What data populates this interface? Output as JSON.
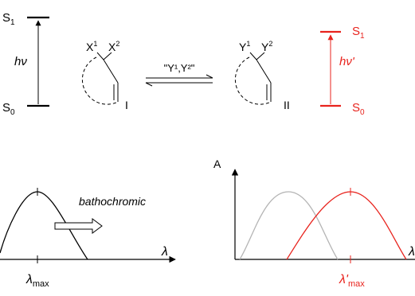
{
  "colors": {
    "ink": "#000000",
    "accent": "#e8231d",
    "gray": "#b4b4b4"
  },
  "left_levels": {
    "s1": "S",
    "s1_sub": "1",
    "s0": "S",
    "s0_sub": "0",
    "arrow_label": "hν"
  },
  "right_levels": {
    "s1": "S",
    "s1_sub": "1",
    "s0": "S",
    "s0_sub": "0",
    "arrow_label": "hν'"
  },
  "molecule_1": {
    "x1": "X",
    "x1_sup": "1",
    "x2": "X",
    "x2_sup": "2",
    "label": "I"
  },
  "molecule_2": {
    "y1": "Y",
    "y1_sup": "1",
    "y2": "Y",
    "y2_sup": "2",
    "label": "II"
  },
  "reagent_label": "\"Y¹,Y²\"",
  "left_plot": {
    "shift_label": "bathochromic",
    "x_axis": "λ",
    "peak": "λ",
    "peak_sub": "max"
  },
  "right_plot": {
    "y_axis": "A",
    "x_axis": "λ",
    "peak": "λ'",
    "peak_sub": "max"
  }
}
